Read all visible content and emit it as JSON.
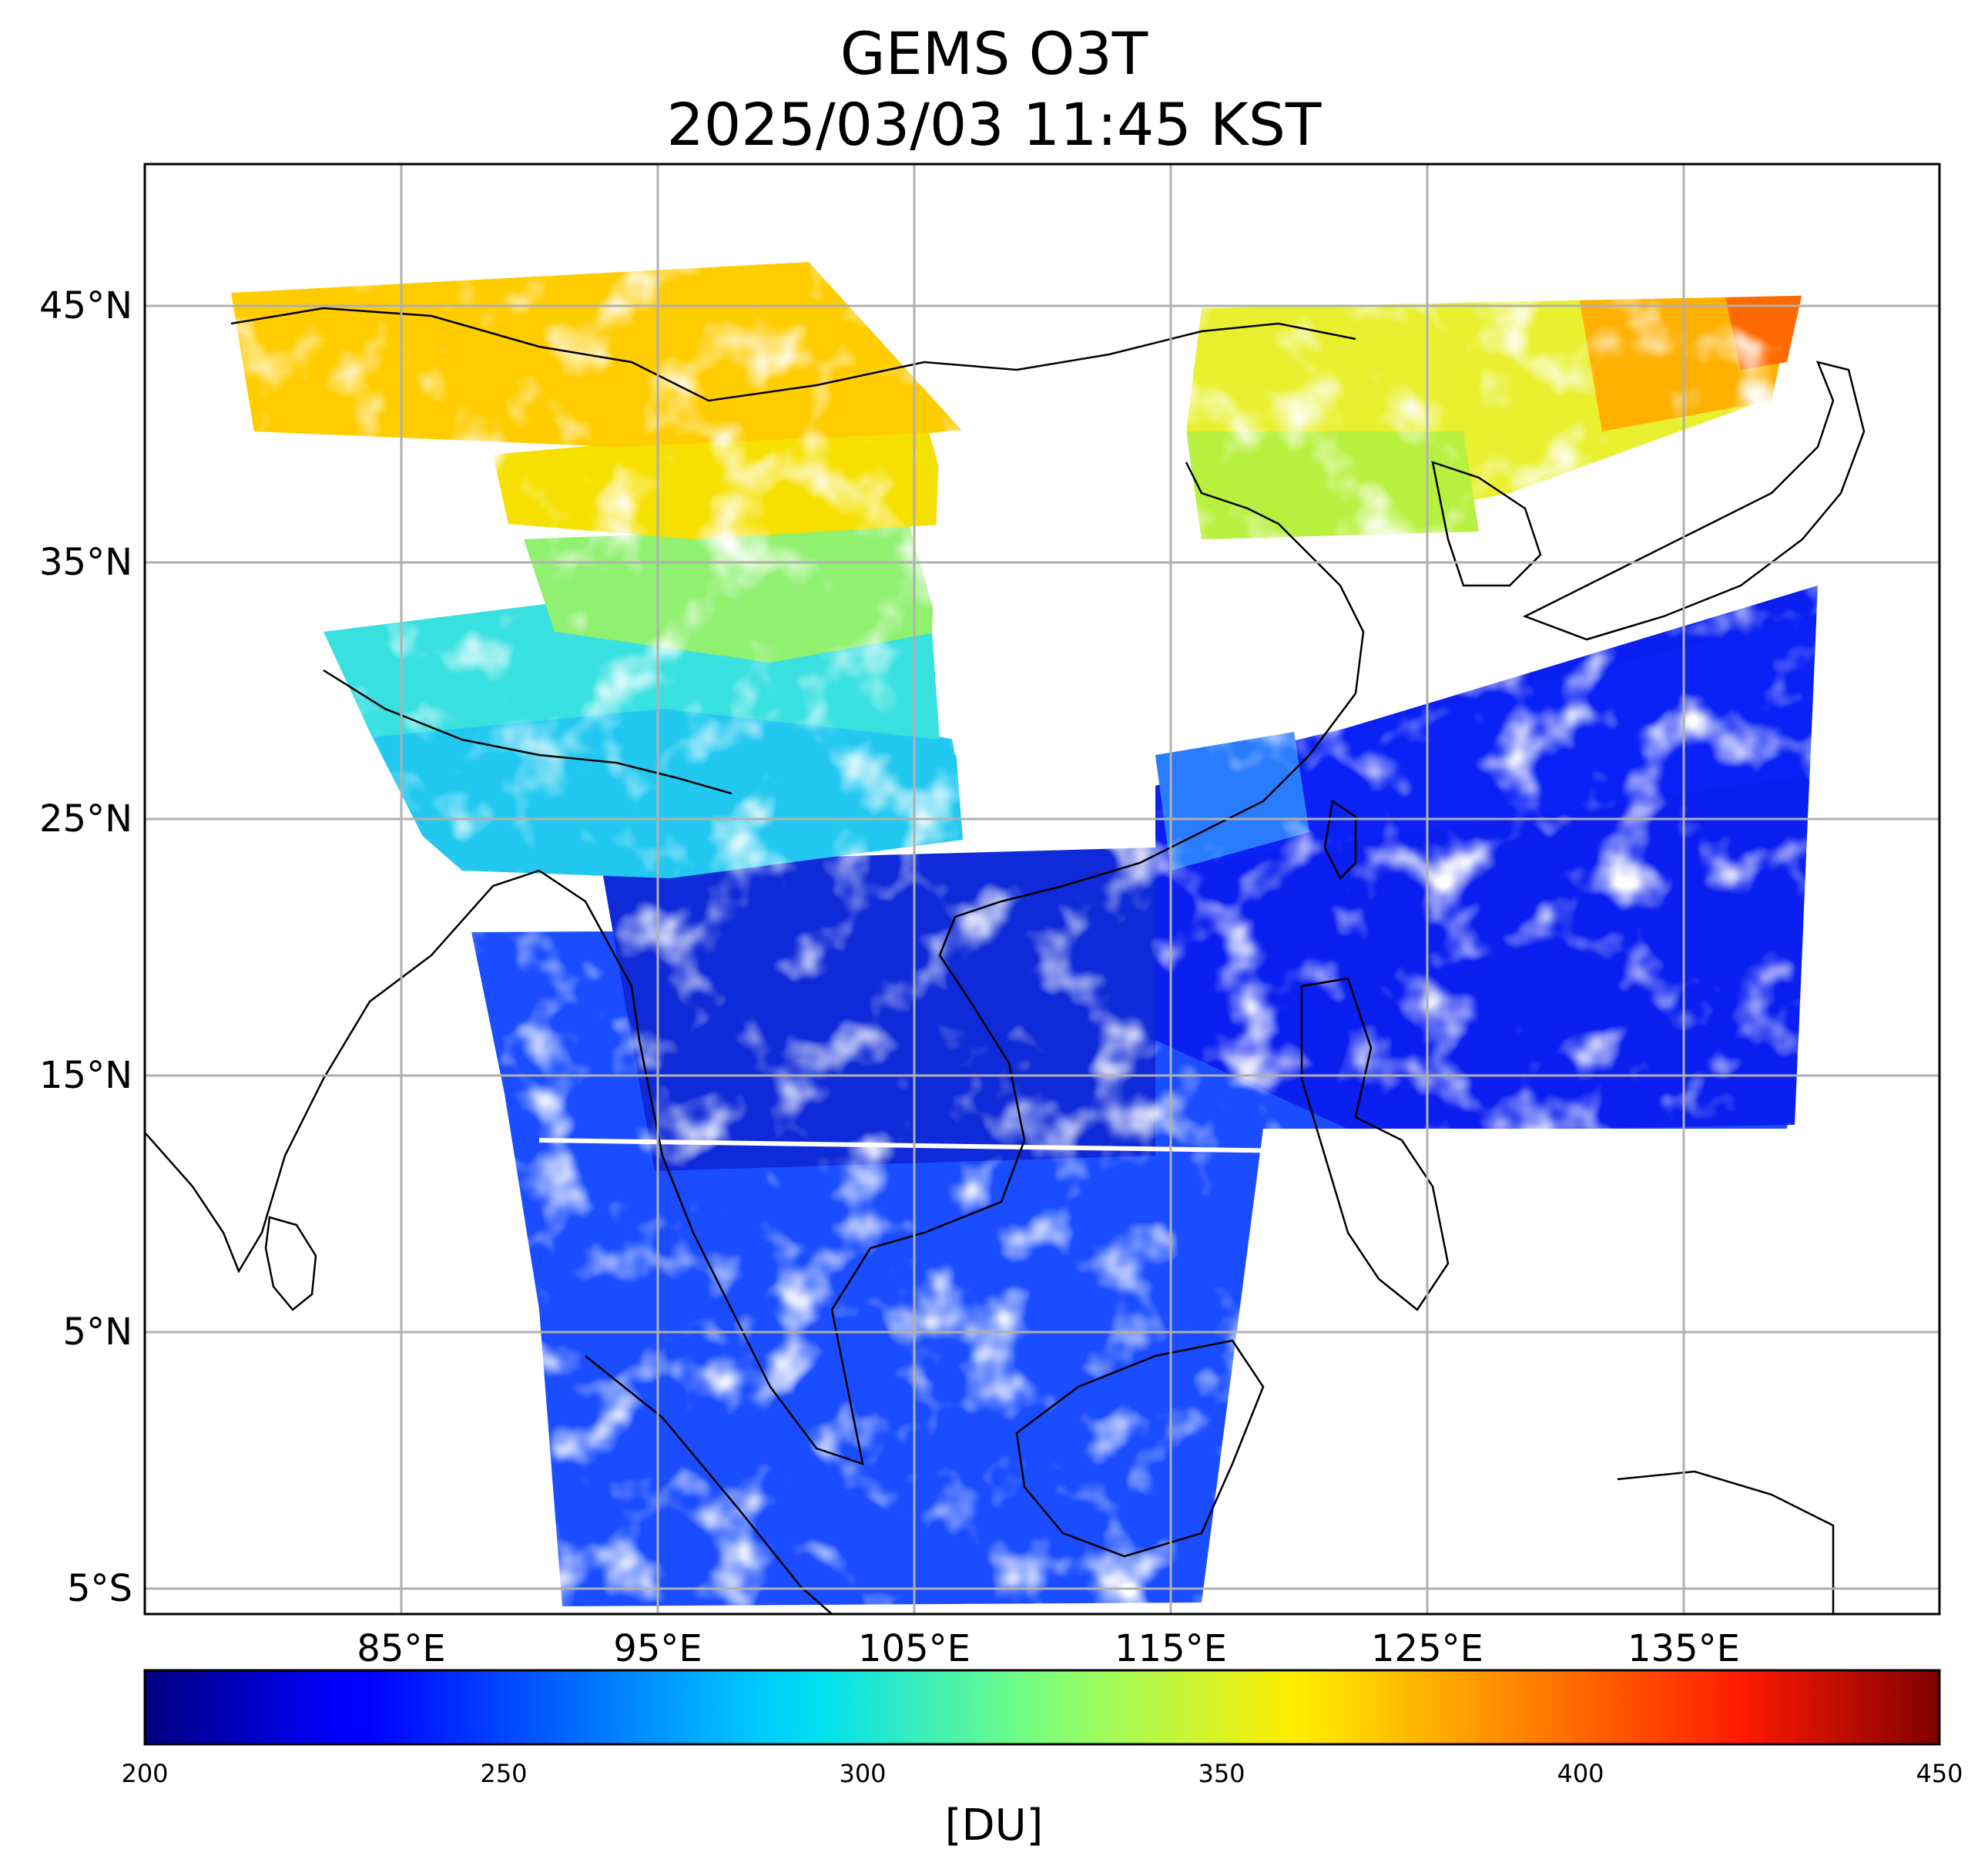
{
  "title": {
    "line1": "GEMS O3T",
    "line2": "2025/03/03 11:45 KST"
  },
  "map": {
    "type": "satellite swath map",
    "variable": "total column ozone",
    "lon_range": [
      75,
      145
    ],
    "lat_range": [
      -6,
      50.5
    ],
    "grid": true,
    "lat_ticks": [
      {
        "value": 45,
        "label": "45°N"
      },
      {
        "value": 35,
        "label": "35°N"
      },
      {
        "value": 25,
        "label": "25°N"
      },
      {
        "value": 15,
        "label": "15°N"
      },
      {
        "value": 5,
        "label": "5°N"
      },
      {
        "value": -5,
        "label": "5°S"
      }
    ],
    "lon_ticks": [
      {
        "value": 85,
        "label": "85°E"
      },
      {
        "value": 95,
        "label": "95°E"
      },
      {
        "value": 105,
        "label": "105°E"
      },
      {
        "value": 115,
        "label": "115°E"
      },
      {
        "value": 125,
        "label": "125°E"
      },
      {
        "value": 135,
        "label": "135°E"
      }
    ],
    "field_regions": [
      {
        "name": "northwest China / Mongolia",
        "approx_du": 375
      },
      {
        "name": "northeast China / Korea",
        "approx_du": 365
      },
      {
        "name": "Tibet",
        "approx_du": 300
      },
      {
        "name": "South China / Indochina",
        "approx_du": 245
      },
      {
        "name": "Maritime continent",
        "approx_du": 250
      },
      {
        "name": "western Pacific",
        "approx_du": 240
      },
      {
        "name": "Sea of Japan edge",
        "approx_du": 400
      }
    ]
  },
  "colorbar": {
    "colormap": "jet",
    "min": 200,
    "max": 450,
    "ticks": [
      "200",
      "250",
      "300",
      "350",
      "400",
      "450"
    ],
    "label": "[DU]"
  }
}
